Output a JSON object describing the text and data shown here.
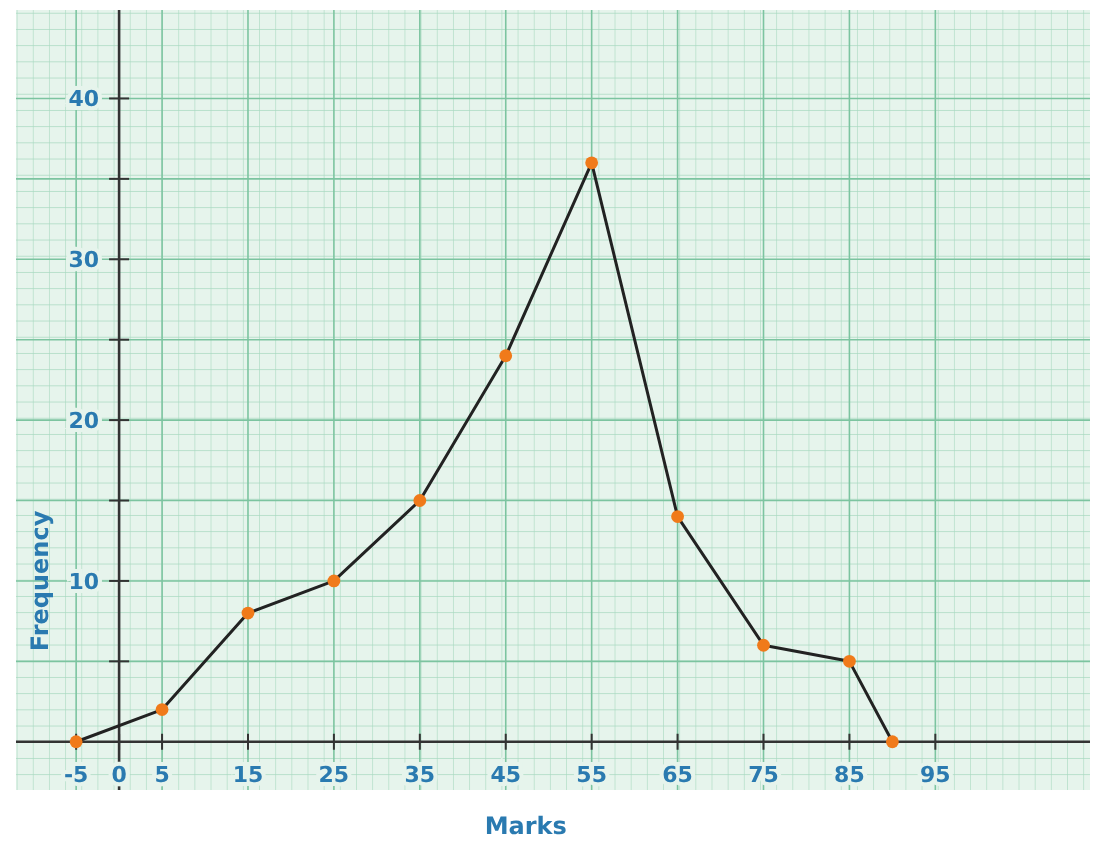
{
  "chart_data": {
    "type": "line",
    "xlabel": "Marks",
    "ylabel": "Frequency",
    "x": [
      -5,
      5,
      15,
      25,
      35,
      45,
      55,
      65,
      75,
      85,
      90
    ],
    "series": [
      {
        "color": "#222222",
        "values": [
          0,
          2,
          8,
          10,
          15,
          24,
          36,
          14,
          6,
          5,
          0
        ]
      }
    ],
    "marker": "circle",
    "line_style": "solid",
    "grid": true,
    "xlim": [
      -12,
      113
    ],
    "ylim": [
      -3,
      45.5
    ],
    "xticks": [
      -5,
      0,
      5,
      15,
      25,
      35,
      45,
      55,
      65,
      75,
      85,
      95
    ],
    "yticks": [
      {
        "value": 5,
        "label": null
      },
      10,
      {
        "value": 15,
        "label": null
      },
      20,
      {
        "value": 25,
        "label": null
      },
      30,
      {
        "value": 35,
        "label": null
      },
      40
    ]
  }
}
